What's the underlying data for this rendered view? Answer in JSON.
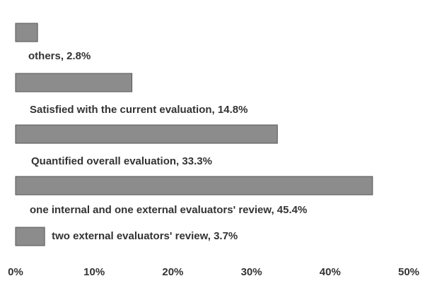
{
  "chart_data": {
    "type": "hbar",
    "values": [
      2.8,
      14.8,
      33.3,
      45.4,
      3.7
    ],
    "value_labels": [
      "others, 2.8%",
      "Satisfied with the current evaluation, 14.8%",
      "Quantified overall evaluation, 33.3%",
      "one internal and one external evaluators' review, 45.4%",
      "two external evaluators' review, 3.7%"
    ],
    "color": "#8c8c8c",
    "xlim": [
      0,
      50
    ],
    "xticks": [
      {
        "value": 0,
        "label": "0%"
      },
      {
        "value": 10,
        "label": "10%"
      },
      {
        "value": 20,
        "label": "20%"
      },
      {
        "value": 30,
        "label": "30%"
      },
      {
        "value": 40,
        "label": "40%"
      },
      {
        "value": 50,
        "label": "50%"
      }
    ]
  }
}
